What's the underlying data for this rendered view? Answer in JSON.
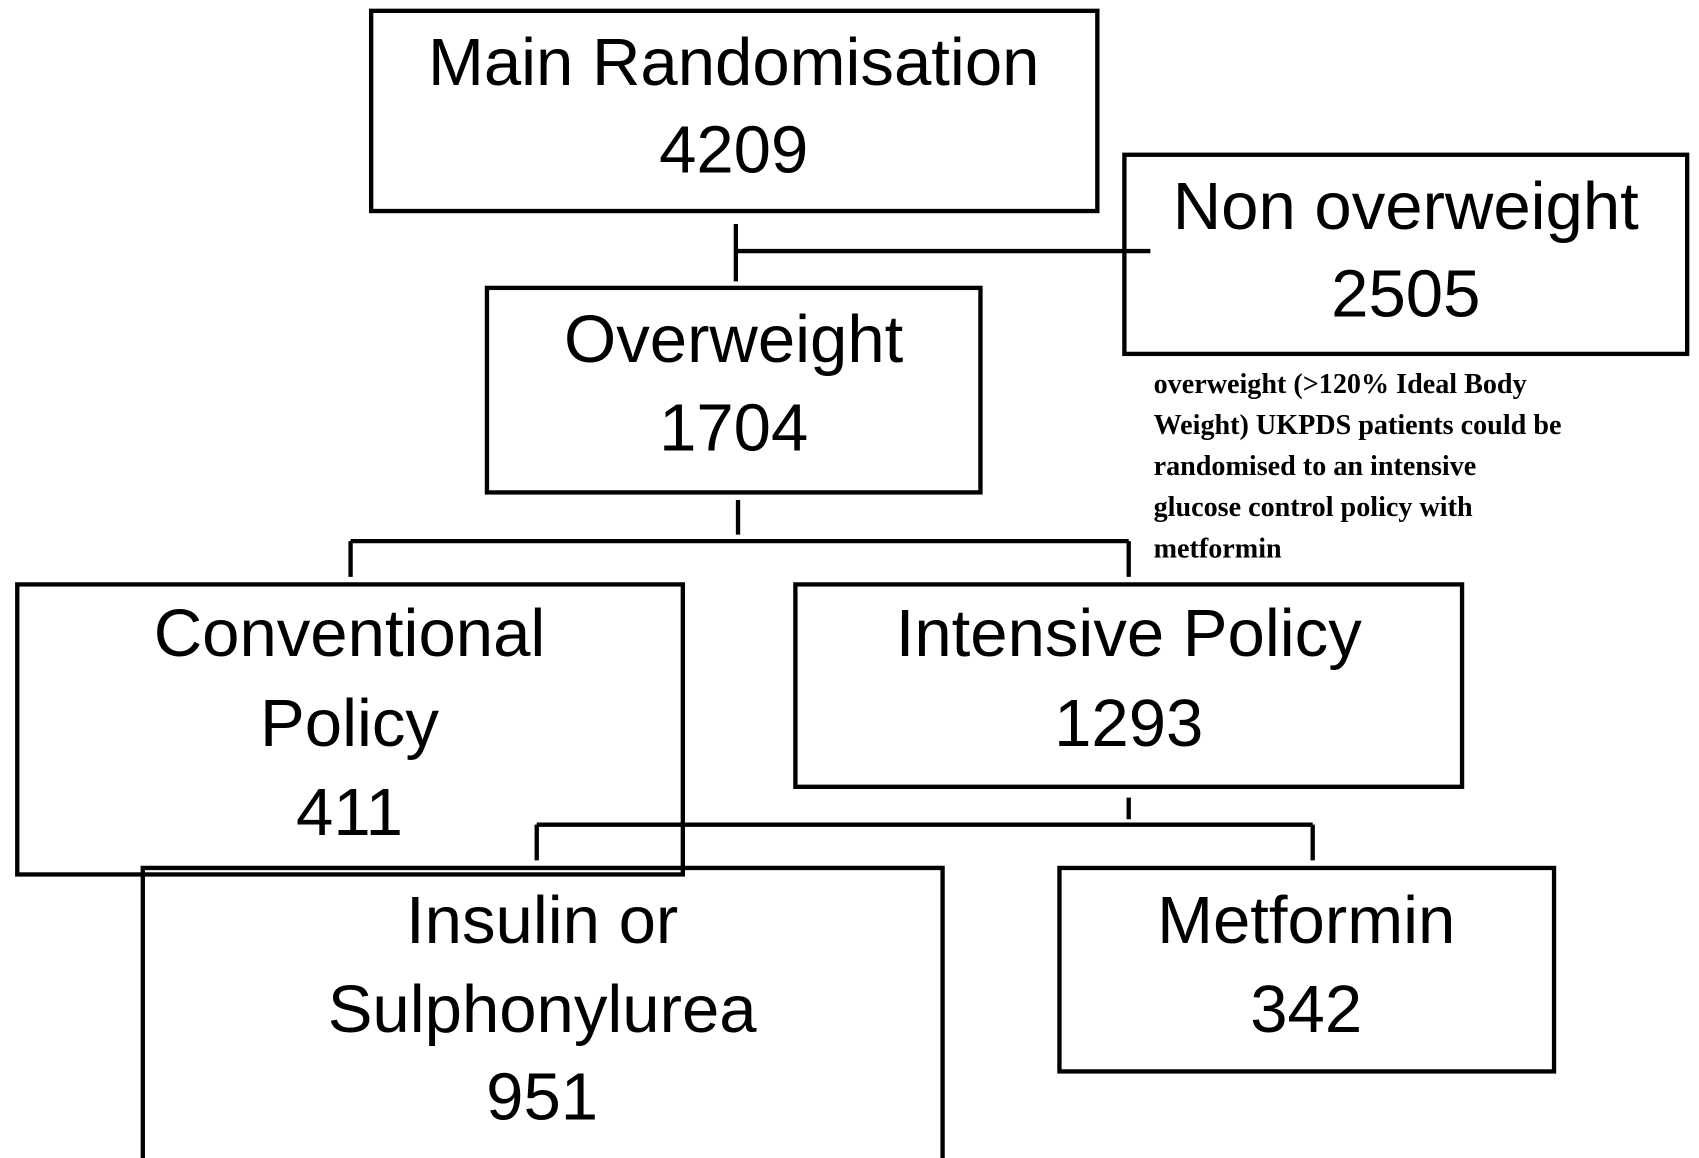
{
  "nodes": [
    {
      "label": [
        "Main Randomisation"
      ],
      "count": "4209"
    },
    {
      "label": [
        "Non overweight"
      ],
      "count": "2505"
    },
    {
      "label": [
        "Overweight"
      ],
      "count": "1704"
    },
    {
      "label": [
        "Conventional",
        "Policy"
      ],
      "count": "411"
    },
    {
      "label": [
        "Intensive Policy"
      ],
      "count": "1293"
    },
    {
      "label": [
        "Insulin or",
        "Sulphonylurea"
      ],
      "count": "951"
    },
    {
      "label": [
        "Metformin"
      ],
      "count": "342"
    }
  ],
  "note": [
    "overweight (>120% Ideal Body",
    "Weight) UKPDS patients could be",
    "randomised to an intensive",
    "glucose control policy with",
    "metformin"
  ]
}
